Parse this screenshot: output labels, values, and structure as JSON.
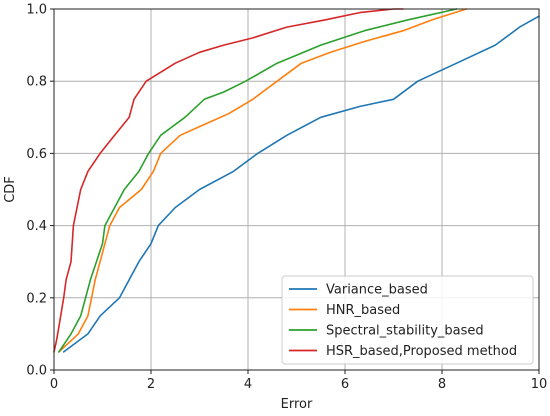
{
  "chart_data": {
    "type": "line",
    "title": "",
    "xlabel": "Error",
    "ylabel": "CDF",
    "xlim": [
      0,
      10
    ],
    "ylim": [
      0.0,
      1.0
    ],
    "xticks": [
      0,
      2,
      4,
      6,
      8,
      10
    ],
    "yticks": [
      0.0,
      0.2,
      0.4,
      0.6,
      0.8,
      1.0
    ],
    "grid": true,
    "legend_position": "bottom-right",
    "series": [
      {
        "name": "Variance_based",
        "color": "#1f77b4",
        "x": [
          0.2,
          0.7,
          0.95,
          1.35,
          1.75,
          2.0,
          2.15,
          2.5,
          3.0,
          3.7,
          4.2,
          4.8,
          5.5,
          6.3,
          7.0,
          7.5,
          8.3,
          9.1,
          9.6,
          10.0
        ],
        "y": [
          0.05,
          0.1,
          0.15,
          0.2,
          0.3,
          0.35,
          0.4,
          0.45,
          0.5,
          0.55,
          0.6,
          0.65,
          0.7,
          0.73,
          0.75,
          0.8,
          0.85,
          0.9,
          0.95,
          0.98
        ]
      },
      {
        "name": "HNR_based",
        "color": "#ff7f0e",
        "x": [
          0.1,
          0.5,
          0.7,
          0.85,
          1.05,
          1.15,
          1.35,
          1.8,
          2.05,
          2.2,
          2.6,
          3.1,
          3.6,
          4.1,
          4.6,
          5.1,
          5.7,
          6.4,
          7.2,
          7.8,
          8.5
        ],
        "y": [
          0.05,
          0.1,
          0.15,
          0.25,
          0.35,
          0.4,
          0.45,
          0.5,
          0.55,
          0.6,
          0.65,
          0.68,
          0.71,
          0.75,
          0.8,
          0.85,
          0.88,
          0.91,
          0.94,
          0.97,
          1.0
        ]
      },
      {
        "name": "Spectral_stability_based",
        "color": "#2ca02c",
        "x": [
          0.1,
          0.35,
          0.55,
          0.75,
          1.0,
          1.05,
          1.45,
          1.75,
          1.95,
          2.2,
          2.7,
          3.1,
          3.5,
          3.95,
          4.6,
          5.5,
          6.4,
          7.3,
          8.3
        ],
        "y": [
          0.05,
          0.1,
          0.15,
          0.25,
          0.35,
          0.4,
          0.5,
          0.55,
          0.6,
          0.65,
          0.7,
          0.75,
          0.77,
          0.8,
          0.85,
          0.9,
          0.94,
          0.97,
          1.0
        ]
      },
      {
        "name": "HSR_based,Proposed method",
        "color": "#d62728",
        "x": [
          0.0,
          0.05,
          0.1,
          0.2,
          0.25,
          0.35,
          0.4,
          0.55,
          0.7,
          0.95,
          1.25,
          1.55,
          1.65,
          1.9,
          2.5,
          3.0,
          3.5,
          4.1,
          4.8,
          5.6,
          6.3,
          7.0,
          7.2
        ],
        "y": [
          0.05,
          0.08,
          0.12,
          0.2,
          0.25,
          0.3,
          0.4,
          0.5,
          0.55,
          0.6,
          0.65,
          0.7,
          0.75,
          0.8,
          0.85,
          0.88,
          0.9,
          0.92,
          0.95,
          0.97,
          0.99,
          1.0,
          1.0
        ]
      }
    ]
  }
}
